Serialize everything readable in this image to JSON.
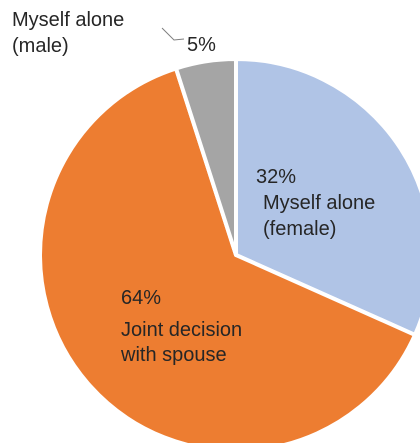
{
  "chart_data": {
    "type": "pie",
    "title": "",
    "slices": [
      {
        "label_lines": [
          "Myself alone",
          "(female)"
        ],
        "value": 32,
        "value_label": "32%",
        "color": "#b0c4e6"
      },
      {
        "label_lines": [
          "Joint decision",
          "with spouse"
        ],
        "value": 64,
        "value_label": "64%",
        "color": "#ed7d31"
      },
      {
        "label_lines": [
          "Myself alone",
          "(male)"
        ],
        "value": 5,
        "value_label": "5%",
        "color": "#a5a5a5"
      }
    ],
    "start_angle_deg": 0,
    "direction": "clockwise",
    "separator_color": "#ffffff",
    "legend": "none"
  }
}
